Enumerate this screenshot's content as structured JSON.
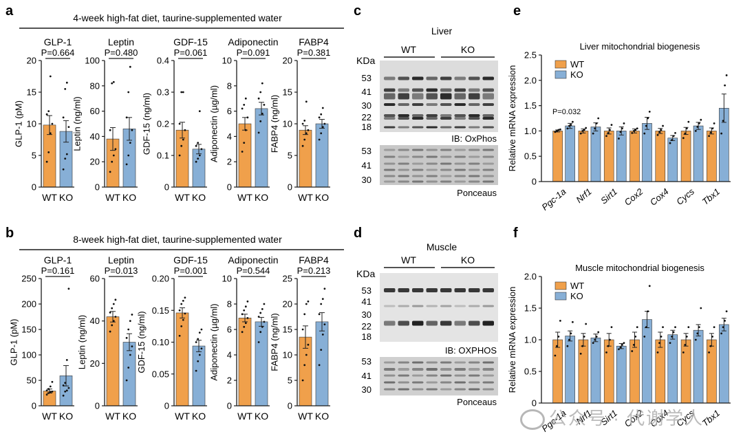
{
  "colors": {
    "wt": "#F0A04B",
    "ko": "#87AFD6",
    "axis": "#1a1a1a"
  },
  "panels": {
    "a": {
      "letter": "a",
      "header": "4-week high-fat diet, taurine-supplemented water"
    },
    "b": {
      "letter": "b",
      "header": "8-week high-fat diet, taurine-supplemented water"
    },
    "c": {
      "letter": "c"
    },
    "d": {
      "letter": "d"
    },
    "e": {
      "letter": "e"
    },
    "f": {
      "letter": "f"
    }
  },
  "blots": {
    "c": {
      "tissue": "Liver",
      "kda": "KDa",
      "group_wt": "WT",
      "group_ko": "KO",
      "top_ladder": [
        "53",
        "41",
        "30",
        "22",
        "18"
      ],
      "ib_label": "IB: OxPhos",
      "bottom_ladder": [
        "53",
        "41",
        "30"
      ],
      "stain_label": "Ponceaus"
    },
    "d": {
      "tissue": "Muscle",
      "kda": "KDa",
      "group_wt": "WT",
      "group_ko": "KO",
      "top_ladder": [
        "53",
        "41",
        "30",
        "22",
        "18"
      ],
      "ib_label": "IB: OXPHOS",
      "bottom_ladder": [
        "53",
        "41",
        "30"
      ],
      "stain_label": "Ponceaus"
    }
  },
  "chart_data": [
    {
      "id": "a1",
      "panel": "a",
      "type": "bar",
      "title": "GLP-1",
      "ylabel": "GLP-1 (pM)",
      "categories": [
        "WT",
        "KO"
      ],
      "values": [
        9.8,
        8.8
      ],
      "errors": [
        1.5,
        1.7
      ],
      "ylim": [
        0,
        20
      ],
      "yticks": [
        "0",
        "5",
        "10",
        "15",
        "20"
      ],
      "pvalue": "P=0.664",
      "points": [
        [
          4.0,
          5.5,
          8.5,
          10.0,
          11.5,
          12.0,
          17.5
        ],
        [
          2.8,
          4.5,
          5.2,
          9.5,
          11.0,
          15.5,
          16.5
        ]
      ]
    },
    {
      "id": "a2",
      "panel": "a",
      "type": "bar",
      "title": "Leptin",
      "ylabel": "Leptin (ng/ml)",
      "categories": [
        "WT",
        "KO"
      ],
      "values": [
        38,
        46
      ],
      "errors": [
        9,
        9
      ],
      "ylim": [
        0,
        100
      ],
      "yticks": [
        "0",
        "20",
        "40",
        "60",
        "80",
        "100"
      ],
      "pvalue": "P=0.480",
      "points": [
        [
          12,
          20,
          25,
          30,
          45,
          82,
          83
        ],
        [
          18,
          25,
          35,
          45,
          55,
          75,
          95
        ]
      ]
    },
    {
      "id": "a3",
      "panel": "a",
      "type": "bar",
      "title": "GDF-15",
      "ylabel": "GDF-15 (ng/ml)",
      "categories": [
        "WT",
        "KO"
      ],
      "values": [
        0.18,
        0.12
      ],
      "errors": [
        0.025,
        0.015
      ],
      "ylim": [
        0,
        0.4
      ],
      "yticks": [
        "0",
        "0.1",
        "0.2",
        "0.3",
        "0.4"
      ],
      "pvalue": "P=0.061",
      "points": [
        [
          0.1,
          0.13,
          0.15,
          0.18,
          0.2,
          0.3,
          0.3
        ],
        [
          0.08,
          0.09,
          0.1,
          0.12,
          0.13,
          0.14,
          0.24
        ]
      ]
    },
    {
      "id": "a4",
      "panel": "a",
      "type": "bar",
      "title": "Adiponectin",
      "ylabel": "Adiponectin (µg/ml)",
      "categories": [
        "WT",
        "KO"
      ],
      "values": [
        5.0,
        6.2
      ],
      "errors": [
        0.5,
        0.5
      ],
      "ylim": [
        0,
        10
      ],
      "yticks": [
        "0",
        "2",
        "4",
        "6",
        "8",
        "10"
      ],
      "pvalue": "P=0.091",
      "points": [
        [
          2.8,
          3.5,
          4.5,
          5.5,
          6.2,
          6.5,
          7.0
        ],
        [
          4.3,
          5.2,
          5.8,
          6.5,
          7.0,
          7.5,
          8.2
        ]
      ]
    },
    {
      "id": "a5",
      "panel": "a",
      "type": "bar",
      "title": "FABP4",
      "ylabel": "FABP4 (ng/ml)",
      "categories": [
        "WT",
        "KO"
      ],
      "values": [
        9.0,
        10.0
      ],
      "errors": [
        0.7,
        0.7
      ],
      "ylim": [
        0,
        20
      ],
      "yticks": [
        "0",
        "5",
        "10",
        "15",
        "20"
      ],
      "pvalue": "P=0.381",
      "points": [
        [
          6.5,
          7.5,
          8.5,
          9.0,
          10.0,
          10.5,
          13.5
        ],
        [
          7.5,
          8.5,
          9.5,
          10.0,
          11.0,
          11.5,
          12.5
        ]
      ]
    },
    {
      "id": "b1",
      "panel": "b",
      "type": "bar",
      "title": "GLP-1",
      "ylabel": "GLP-1 (pM)",
      "categories": [
        "WT",
        "KO"
      ],
      "values": [
        29,
        59
      ],
      "errors": [
        4,
        20
      ],
      "ylim": [
        0,
        250
      ],
      "yticks": [
        "0",
        "50",
        "100",
        "150",
        "200",
        "250"
      ],
      "pvalue": "P=0.161",
      "points": [
        [
          22,
          25,
          27,
          28,
          30,
          33,
          38,
          47
        ],
        [
          20,
          28,
          30,
          35,
          40,
          45,
          90,
          230
        ]
      ]
    },
    {
      "id": "b2",
      "panel": "b",
      "type": "bar",
      "title": "Leptin",
      "ylabel": "Leptin (ng/ml)",
      "categories": [
        "WT",
        "KO"
      ],
      "values": [
        42,
        30
      ],
      "errors": [
        2.5,
        4
      ],
      "ylim": [
        0,
        60
      ],
      "yticks": [
        "0",
        "20",
        "40",
        "60"
      ],
      "pvalue": "P=0.013",
      "points": [
        [
          35,
          38,
          40,
          42,
          44,
          46,
          48,
          50
        ],
        [
          12,
          18,
          24,
          28,
          32,
          36,
          40,
          43
        ]
      ]
    },
    {
      "id": "b3",
      "panel": "b",
      "type": "bar",
      "title": "GDF-15",
      "ylabel": "GDF-15 (ng/ml)",
      "categories": [
        "WT",
        "KO"
      ],
      "values": [
        0.146,
        0.094
      ],
      "errors": [
        0.008,
        0.009
      ],
      "ylim": [
        0,
        0.2
      ],
      "yticks": [
        "0",
        "0.05",
        "0.10",
        "0.15",
        "0.20"
      ],
      "pvalue": "P=0.001",
      "points": [
        [
          0.11,
          0.125,
          0.135,
          0.145,
          0.15,
          0.16,
          0.165,
          0.17
        ],
        [
          0.055,
          0.07,
          0.08,
          0.09,
          0.1,
          0.105,
          0.115,
          0.12
        ]
      ]
    },
    {
      "id": "b4",
      "panel": "b",
      "type": "bar",
      "title": "Adiponectin",
      "ylabel": "Adiponectin (µg/ml)",
      "categories": [
        "WT",
        "KO"
      ],
      "values": [
        6.9,
        6.6
      ],
      "errors": [
        0.3,
        0.35
      ],
      "ylim": [
        0,
        10
      ],
      "yticks": [
        "0",
        "2",
        "4",
        "6",
        "8",
        "10"
      ],
      "pvalue": "P=0.544",
      "points": [
        [
          5.8,
          6.2,
          6.5,
          6.9,
          7.2,
          7.5,
          7.8,
          8.2
        ],
        [
          5.0,
          5.8,
          6.2,
          6.6,
          7.0,
          7.3,
          7.6,
          8.0
        ]
      ]
    },
    {
      "id": "b5",
      "panel": "b",
      "type": "bar",
      "title": "FABP4",
      "ylabel": "FABP4 (ng/ml)",
      "categories": [
        "WT",
        "KO"
      ],
      "values": [
        13.5,
        16.5
      ],
      "errors": [
        2.2,
        1.8
      ],
      "ylim": [
        0,
        25
      ],
      "yticks": [
        "0",
        "5",
        "10",
        "15",
        "20",
        "25"
      ],
      "pvalue": "P=0.213",
      "points": [
        [
          5,
          8,
          10,
          12,
          15,
          18,
          20,
          20.5
        ],
        [
          8,
          11,
          14,
          16,
          18,
          20,
          21,
          23
        ]
      ]
    },
    {
      "id": "e",
      "panel": "e",
      "type": "bar",
      "title": "Liver mitochondrial biogenesis",
      "ylabel": "Relative mRNA expression",
      "categories": [
        "Pgc-1a",
        "Nrf1",
        "Sirt1",
        "Cox2",
        "Cox4",
        "Cycs",
        "Tbx1"
      ],
      "series": [
        {
          "name": "WT",
          "values": [
            1.0,
            1.0,
            1.0,
            1.0,
            1.0,
            1.0,
            1.0
          ],
          "errors": [
            0.02,
            0.04,
            0.06,
            0.04,
            0.05,
            0.07,
            0.06
          ]
        },
        {
          "name": "KO",
          "values": [
            1.1,
            1.08,
            1.0,
            1.15,
            0.86,
            1.1,
            1.45
          ],
          "errors": [
            0.05,
            0.08,
            0.08,
            0.12,
            0.05,
            0.07,
            0.28
          ]
        }
      ],
      "ylim": [
        0,
        2.5
      ],
      "yticks": [
        "0",
        "0.5",
        "1.0",
        "1.5",
        "2.0",
        "2.5"
      ],
      "annotation": "P=0.032",
      "points": [
        [
          [
            0.98,
            1.0,
            1.02,
            1.03
          ],
          [
            1.05,
            1.1,
            1.12,
            1.18
          ]
        ],
        [
          [
            0.95,
            1.0,
            1.02,
            1.06
          ],
          [
            0.95,
            1.05,
            1.15,
            1.25
          ]
        ],
        [
          [
            0.9,
            0.96,
            1.02,
            1.12
          ],
          [
            0.85,
            0.98,
            1.05,
            1.15
          ]
        ],
        [
          [
            0.96,
            1.0,
            1.02,
            1.05
          ],
          [
            0.95,
            1.1,
            1.25,
            1.38
          ]
        ],
        [
          [
            0.92,
            0.98,
            1.02,
            1.1
          ],
          [
            0.76,
            0.82,
            0.9,
            0.96
          ]
        ],
        [
          [
            0.86,
            0.95,
            1.05,
            1.18
          ],
          [
            1.0,
            1.08,
            1.15,
            1.22
          ]
        ],
        [
          [
            0.9,
            0.97,
            1.05,
            1.15
          ],
          [
            0.95,
            1.2,
            1.9,
            2.1
          ]
        ]
      ]
    },
    {
      "id": "f",
      "panel": "f",
      "type": "bar",
      "title": "Muscle mitochondrial biogenesis",
      "ylabel": "Relative mRNA expression",
      "categories": [
        "Pgc-1a",
        "Nrf1",
        "Sirt1",
        "Cox2",
        "Cox4",
        "Cycs",
        "Tbx1"
      ],
      "series": [
        {
          "name": "WT",
          "values": [
            1.0,
            1.0,
            1.0,
            1.0,
            1.0,
            1.0,
            1.0
          ],
          "errors": [
            0.12,
            0.1,
            0.1,
            0.12,
            0.12,
            0.1,
            0.1
          ]
        },
        {
          "name": "KO",
          "values": [
            1.06,
            1.03,
            0.9,
            1.32,
            1.08,
            1.15,
            1.24
          ],
          "errors": [
            0.08,
            0.06,
            0.04,
            0.13,
            0.07,
            0.09,
            0.1
          ]
        }
      ],
      "ylim": [
        0,
        2.0
      ],
      "yticks": [
        "0",
        "0.5",
        "1.0",
        "1.5",
        "2.0"
      ],
      "points": [
        [
          [
            0.75,
            0.9,
            1.05,
            1.3
          ],
          [
            0.9,
            1.0,
            1.1,
            1.28
          ]
        ],
        [
          [
            0.78,
            0.9,
            1.05,
            1.25
          ],
          [
            0.95,
            1.0,
            1.05,
            1.12
          ]
        ],
        [
          [
            0.8,
            0.9,
            1.0,
            1.2
          ],
          [
            0.85,
            0.88,
            0.92,
            0.95
          ]
        ],
        [
          [
            0.82,
            0.92,
            1.05,
            1.2
          ],
          [
            1.05,
            1.2,
            1.45,
            1.85
          ]
        ],
        [
          [
            0.8,
            0.95,
            1.05,
            1.2
          ],
          [
            0.95,
            1.05,
            1.12,
            1.2
          ]
        ],
        [
          [
            0.8,
            0.92,
            1.05,
            1.2
          ],
          [
            1.0,
            1.1,
            1.2,
            1.5
          ]
        ],
        [
          [
            0.8,
            0.9,
            1.05,
            1.2
          ],
          [
            1.1,
            1.2,
            1.3,
            1.45
          ]
        ]
      ]
    }
  ],
  "watermark": "公众号 · 代谢学人"
}
